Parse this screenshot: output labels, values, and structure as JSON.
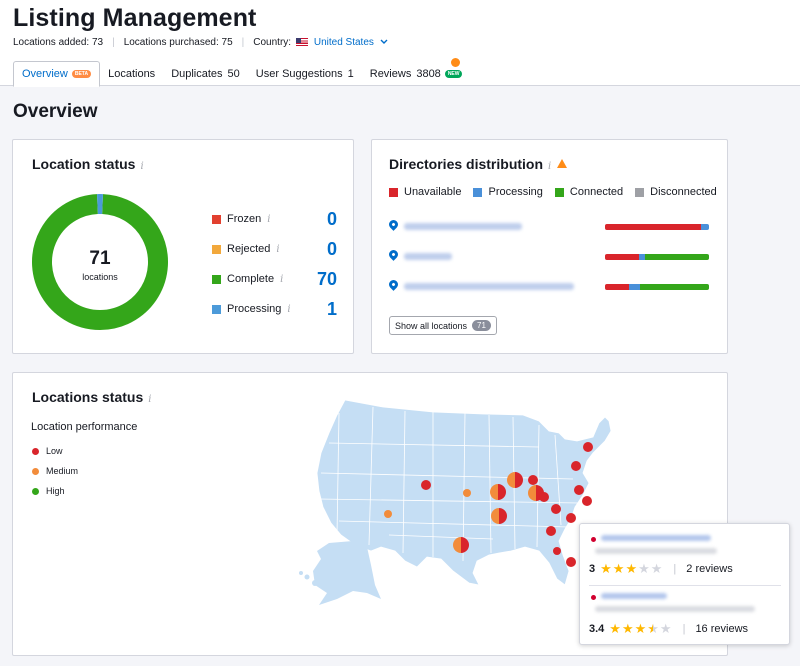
{
  "header": {
    "title": "Listing Management",
    "locations_added": "Locations added: 73",
    "locations_purchased": "Locations purchased: 75",
    "country_label": "Country:",
    "country_value": "United States"
  },
  "tabs": [
    {
      "label": "Overview",
      "badge": "BETA",
      "active": true
    },
    {
      "label": "Locations"
    },
    {
      "label": "Duplicates",
      "count": "50"
    },
    {
      "label": "User Suggestions",
      "count": "1"
    },
    {
      "label": "Reviews",
      "count": "3808",
      "badge": "NEW"
    }
  ],
  "section_title": "Overview",
  "location_status": {
    "title": "Location status",
    "total": "71",
    "total_label": "locations",
    "items": [
      {
        "label": "Frozen",
        "value": "0",
        "color": "#e2402f",
        "percent": 0
      },
      {
        "label": "Rejected",
        "value": "0",
        "color": "#f2a83b",
        "percent": 0
      },
      {
        "label": "Complete",
        "value": "70",
        "color": "#34a61a",
        "percent": 98.6
      },
      {
        "label": "Processing",
        "value": "1",
        "color": "#4c9ad9",
        "percent": 1.4
      }
    ]
  },
  "directories": {
    "title": "Directories distribution",
    "legend": [
      {
        "label": "Unavailable",
        "color": "#d9252b"
      },
      {
        "label": "Processing",
        "color": "#4a90d9"
      },
      {
        "label": "Connected",
        "color": "#34a61a"
      },
      {
        "label": "Disconnected",
        "color": "#9ea0a5"
      }
    ],
    "rows": [
      {
        "segments": [
          0.92,
          0.08,
          0,
          0
        ]
      },
      {
        "segments": [
          0.33,
          0.05,
          0.62,
          0
        ]
      },
      {
        "segments": [
          0.23,
          0.11,
          0.66,
          0
        ]
      }
    ],
    "show_all_label": "Show all locations",
    "show_all_count": "71"
  },
  "map_card": {
    "title": "Locations status",
    "performance_label": "Location performance",
    "legend": [
      {
        "label": "Low",
        "color": "#d9252b"
      },
      {
        "label": "Medium",
        "color": "#f28c3b"
      },
      {
        "label": "High",
        "color": "#34a61a"
      }
    ]
  },
  "tooltip": {
    "entries": [
      {
        "score": "3",
        "rating": 3,
        "reviews": "2 reviews"
      },
      {
        "score": "3.4",
        "rating": 3.5,
        "reviews": "16 reviews"
      }
    ]
  }
}
